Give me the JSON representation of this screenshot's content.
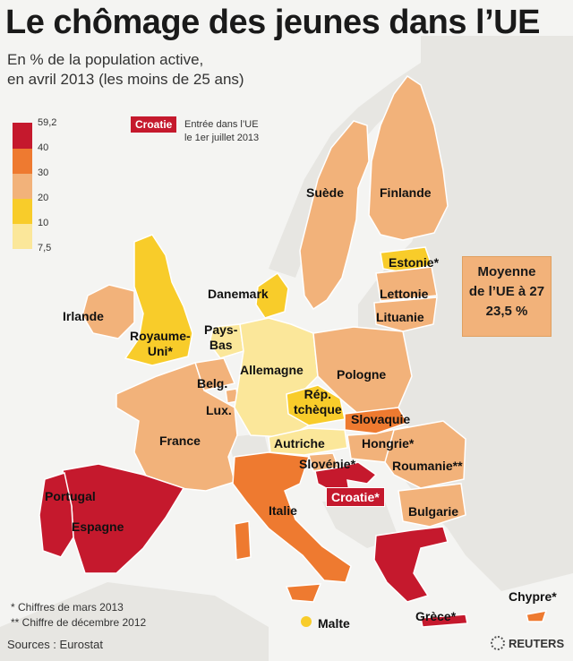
{
  "title": "Le chômage des jeunes dans l’UE",
  "subtitle_line1": "En % de la population active,",
  "subtitle_line2": "en avril 2013 (les moins de 25 ans)",
  "legend": {
    "ticks": [
      "59,2",
      "40",
      "30",
      "20",
      "10",
      "7,5"
    ],
    "colors": [
      "#c5192d",
      "#ee7a30",
      "#f2b27a",
      "#f8cc2a",
      "#fbe79a"
    ]
  },
  "croatie_key": {
    "badge": "Croatie",
    "text_line1": "Entrée dans l’UE",
    "text_line2": "le 1er juillet 2013"
  },
  "average_box": {
    "line1": "Moyenne",
    "line2": "de l’UE à 27",
    "line3": "23,5 %"
  },
  "countries": {
    "suede": "Suède",
    "finlande": "Finlande",
    "estonie": "Estonie*",
    "lettonie": "Lettonie",
    "lituanie": "Lituanie",
    "danemark": "Danemark",
    "irlande": "Irlande",
    "royaume_uni_1": "Royaume-",
    "royaume_uni_2": "Uni*",
    "pays_bas_1": "Pays-",
    "pays_bas_2": "Bas",
    "allemagne": "Allemagne",
    "pologne": "Pologne",
    "belgique": "Belg.",
    "luxembourg": "Lux.",
    "rep_tcheque_1": "Rép.",
    "rep_tcheque_2": "tchèque",
    "slovaquie": "Slovaquie",
    "france": "France",
    "autriche": "Autriche",
    "hongrie": "Hongrie*",
    "slovenie": "Slovénie*",
    "roumanie": "Roumanie**",
    "croatie": "Croatie*",
    "portugal": "Portugal",
    "espagne": "Espagne",
    "italie": "Italie",
    "bulgarie": "Bulgarie",
    "malte": "Malte",
    "grece": "Grèce*",
    "chypre": "Chypre*"
  },
  "notes": {
    "note1": "* Chiffres de mars 2013",
    "note2": "** Chiffre de décembre 2012"
  },
  "source": "Sources : Eurostat",
  "brand": "REUTERS",
  "palette": {
    "sea": "#f4f4f2",
    "non_eu": "#e7e6e2",
    "border": "#ffffff"
  }
}
